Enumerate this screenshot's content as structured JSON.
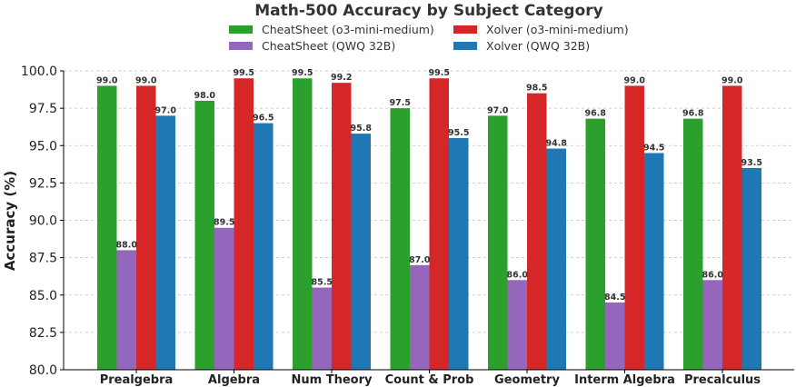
{
  "chart_data": {
    "type": "bar",
    "title": "Math-500 Accuracy by Subject Category",
    "ylabel": "Accuracy (%)",
    "xlabel": "",
    "ylim": [
      80.0,
      100.0
    ],
    "yticks": [
      "80.0",
      "82.5",
      "85.0",
      "87.5",
      "90.0",
      "92.5",
      "95.0",
      "97.5",
      "100.0"
    ],
    "grid": true,
    "legend_position": "top-center",
    "categories": [
      "Prealgebra",
      "Algebra",
      "Num Theory",
      "Count & Prob",
      "Geometry",
      "Interm Algebra",
      "Precalculus"
    ],
    "series": [
      {
        "name": "CheatSheet (o3-mini-medium)",
        "color": "#2ca02c",
        "values": [
          99.0,
          98.0,
          99.5,
          97.5,
          97.0,
          96.8,
          96.8
        ],
        "labels": [
          "99.0",
          "98.0",
          "99.5",
          "97.5",
          "97.0",
          "96.8",
          "96.8"
        ]
      },
      {
        "name": "CheatSheet (QWQ 32B)",
        "color": "#9467bd",
        "values": [
          88.0,
          89.5,
          85.5,
          87.0,
          86.0,
          84.5,
          86.0
        ],
        "labels": [
          "88.0",
          "89.5",
          "85.5",
          "87.0",
          "86.0",
          "84.5",
          "86.0"
        ]
      },
      {
        "name": "Xolver (o3-mini-medium)",
        "color": "#d62728",
        "values": [
          99.0,
          99.5,
          99.2,
          99.5,
          98.5,
          99.0,
          99.0
        ],
        "labels": [
          "99.0",
          "99.5",
          "99.2",
          "99.5",
          "98.5",
          "99.0",
          "99.0"
        ]
      },
      {
        "name": "Xolver (QWQ 32B)",
        "color": "#1f77b4",
        "values": [
          97.0,
          96.5,
          95.8,
          95.5,
          94.8,
          94.5,
          93.5
        ],
        "labels": [
          "97.0",
          "96.5",
          "95.8",
          "95.5",
          "94.8",
          "94.5",
          "93.5"
        ]
      }
    ]
  }
}
